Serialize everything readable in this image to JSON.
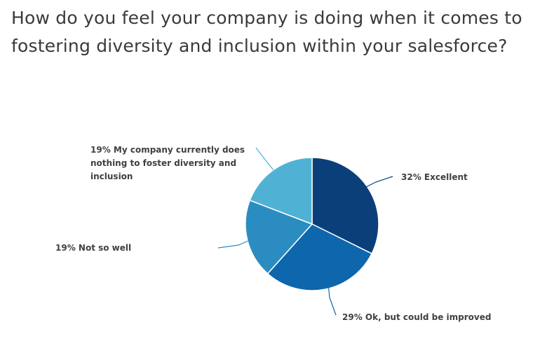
{
  "title": "How do you feel your company is doing when it comes to fostering diversity and inclusion within your salesforce?",
  "chart_data": {
    "type": "pie",
    "title": "How do you feel your company is doing when it comes to fostering diversity and inclusion within your salesforce?",
    "slices": [
      {
        "category": "Excellent",
        "value": 32,
        "label_lines": [
          "32% Excellent"
        ],
        "color": "#0b3f7a"
      },
      {
        "category": "Ok, but could be improved",
        "value": 29,
        "label_lines": [
          "29% Ok, but could be improved"
        ],
        "color": "#0e66ad"
      },
      {
        "category": "Not so well",
        "value": 19,
        "label_lines": [
          "19% Not so well"
        ],
        "color": "#2b8cc1"
      },
      {
        "category": "My company currently does nothing to foster diversity and inclusion",
        "value": 19,
        "label_lines": [
          "19% My company currently does",
          "nothing to foster diversity and",
          "inclusion"
        ],
        "color": "#4fb2d5"
      }
    ],
    "start_angle_deg": 0,
    "direction": "clockwise",
    "legend": "none",
    "label_style": "outside with leader lines"
  }
}
